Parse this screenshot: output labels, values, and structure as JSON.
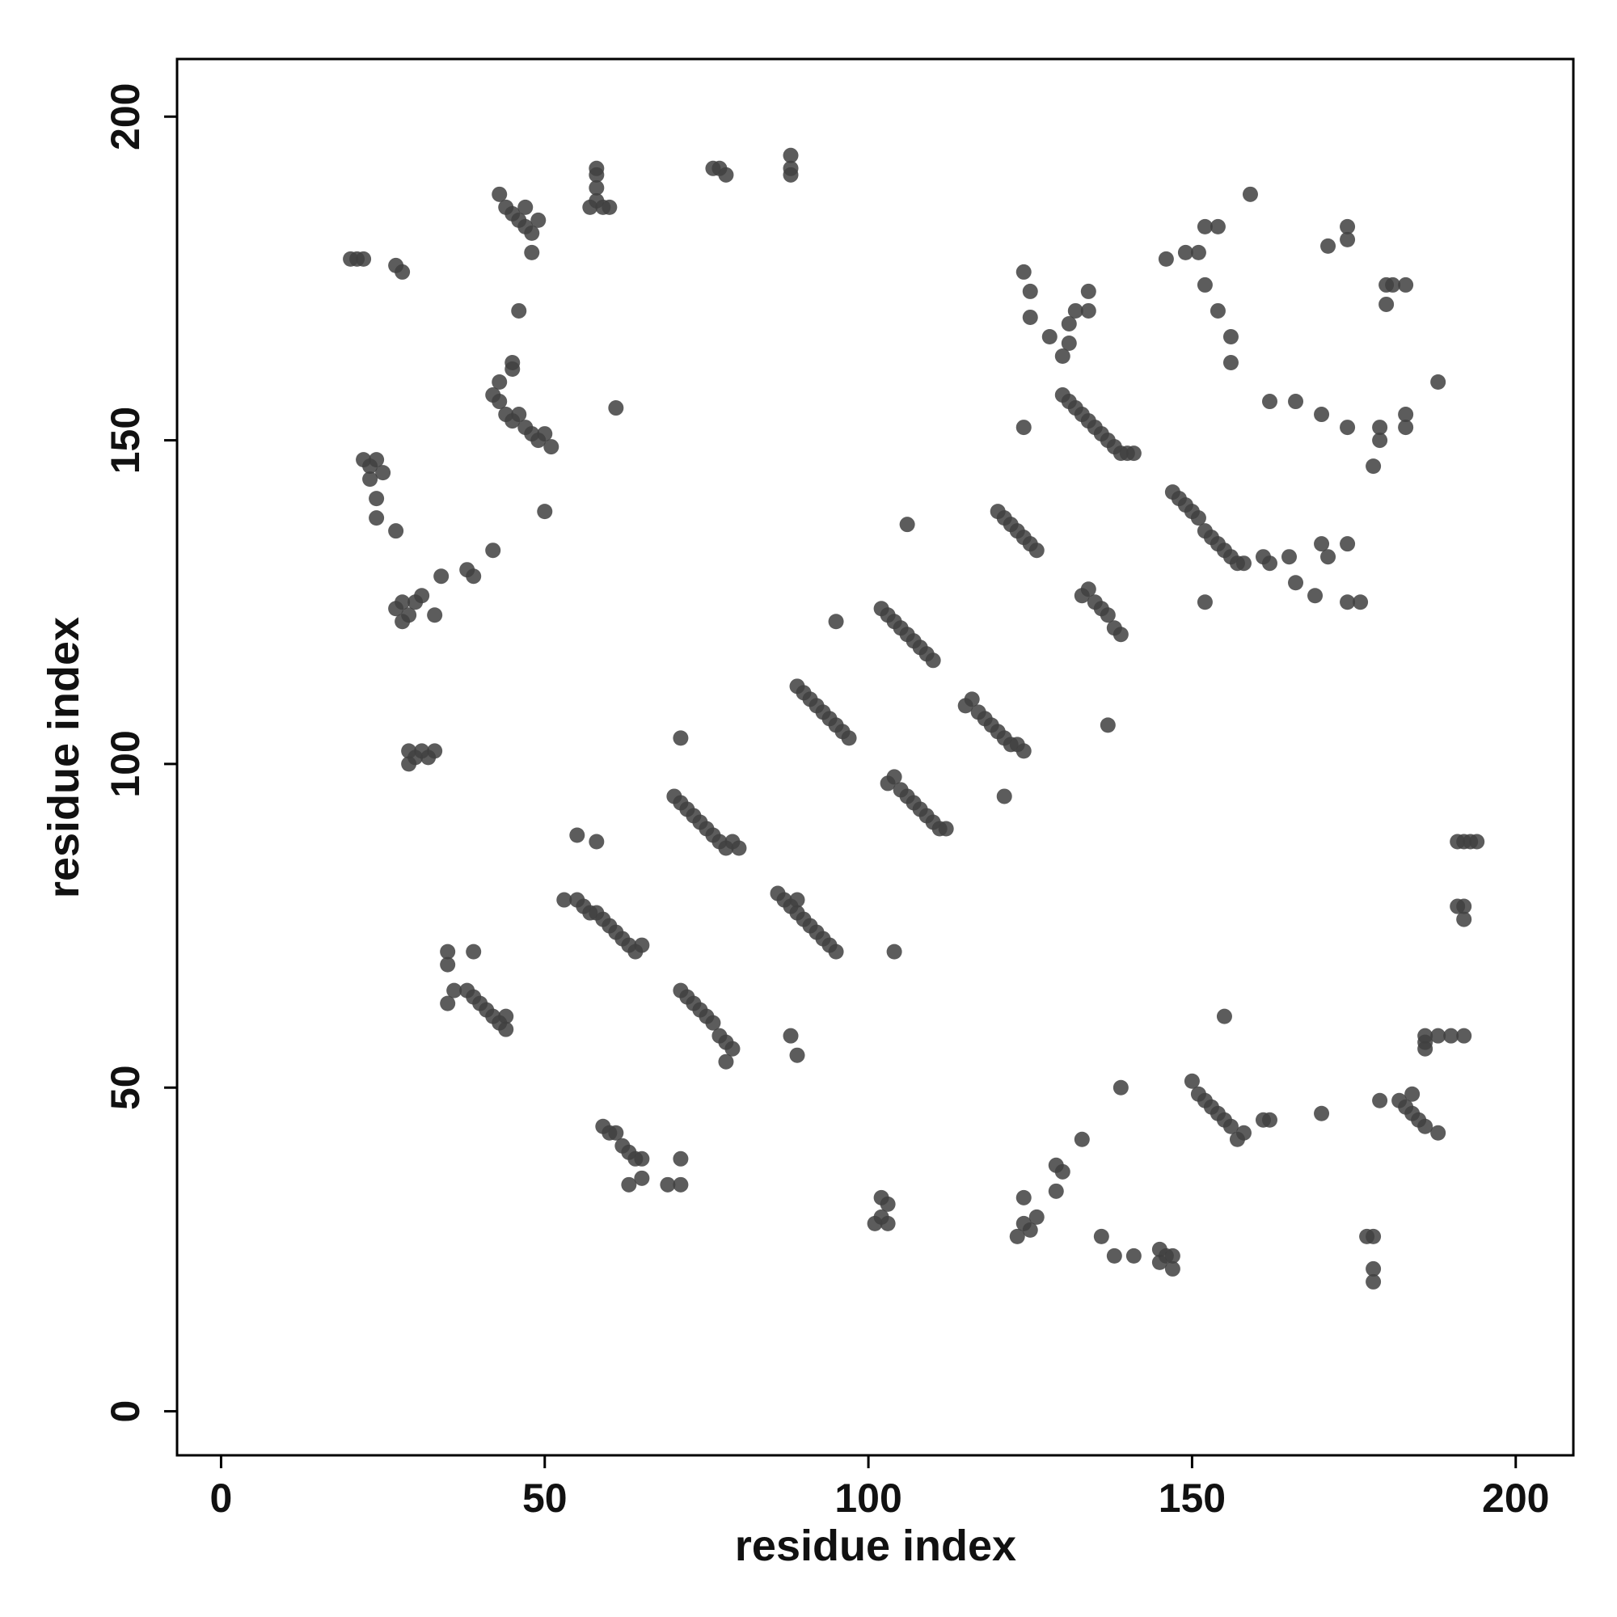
{
  "chart_data": {
    "type": "scatter",
    "xlabel": "residue index",
    "ylabel": "residue index",
    "color": "#404040",
    "xlim": [
      -6.8,
      208.9
    ],
    "ylim": [
      -6.8,
      208.9
    ],
    "xticks": [
      0,
      50,
      100,
      150,
      200
    ],
    "yticks": [
      0,
      50,
      100,
      150,
      200
    ],
    "x": [
      20,
      21,
      22,
      27,
      28,
      22,
      23,
      24,
      25,
      23,
      24,
      24,
      27,
      43,
      44,
      45,
      46,
      47,
      48,
      49,
      47,
      48,
      46,
      57,
      58,
      58,
      58,
      59,
      60,
      58,
      76,
      77,
      78,
      88,
      88,
      88,
      45,
      45,
      43,
      42,
      43,
      44,
      45,
      46,
      47,
      48,
      49,
      50,
      51,
      61,
      50,
      27,
      28,
      29,
      30,
      31,
      28,
      34,
      38,
      39,
      42,
      33,
      29,
      30,
      31,
      32,
      33,
      29,
      35,
      35,
      36,
      35,
      38,
      39,
      40,
      41,
      42,
      43,
      44,
      44,
      39,
      53,
      55,
      56,
      57,
      58,
      59,
      60,
      61,
      62,
      63,
      64,
      65,
      55,
      58,
      70,
      71,
      72,
      73,
      74,
      75,
      76,
      77,
      78,
      79,
      80,
      71,
      71,
      72,
      73,
      74,
      75,
      76,
      77,
      78,
      79,
      78,
      59,
      60,
      61,
      62,
      63,
      64,
      65,
      65,
      63,
      69,
      71,
      71,
      86,
      87,
      88,
      89,
      90,
      91,
      92,
      93,
      94,
      95,
      89,
      88,
      89,
      89,
      90,
      91,
      92,
      93,
      94,
      95,
      96,
      97,
      95,
      102,
      103,
      104,
      105,
      106,
      107,
      108,
      109,
      110,
      106,
      103,
      104,
      105,
      106,
      107,
      108,
      109,
      110,
      111,
      112,
      104,
      115,
      116,
      117,
      118,
      119,
      120,
      121,
      122,
      123,
      124,
      121,
      120,
      121,
      122,
      123,
      124,
      125,
      126,
      101,
      102,
      102,
      103,
      103,
      130,
      131,
      132,
      133,
      134,
      135,
      136,
      137,
      138,
      139,
      140,
      141,
      124,
      125,
      125,
      128,
      130,
      131,
      131,
      132,
      134,
      134,
      124,
      133,
      134,
      135,
      136,
      137,
      138,
      139,
      137,
      147,
      148,
      149,
      150,
      151,
      152,
      153,
      154,
      155,
      156,
      157,
      158,
      152,
      161,
      162,
      165,
      166,
      169,
      171,
      170,
      174,
      174,
      176,
      146,
      149,
      151,
      152,
      154,
      152,
      154,
      156,
      156,
      159,
      162,
      166,
      170,
      174,
      171,
      174,
      174,
      180,
      181,
      183,
      180,
      188,
      183,
      183,
      179,
      179,
      178,
      150,
      151,
      152,
      153,
      154,
      155,
      156,
      157,
      158,
      161,
      162,
      139,
      133,
      155,
      123,
      124,
      125,
      126,
      124,
      129,
      130,
      129,
      136,
      138,
      141,
      145,
      146,
      147,
      145,
      147,
      177,
      178,
      178,
      178,
      170,
      179,
      182,
      183,
      184,
      185,
      186,
      184,
      188,
      186,
      186,
      188,
      190,
      192,
      186,
      191,
      192,
      193,
      194,
      191,
      192,
      192
    ],
    "values": [
      178,
      178,
      178,
      177,
      176,
      147,
      146,
      147,
      145,
      144,
      141,
      138,
      136,
      188,
      186,
      185,
      184,
      183,
      182,
      184,
      186,
      179,
      170,
      186,
      187,
      189,
      191,
      186,
      186,
      192,
      192,
      192,
      191,
      194,
      192,
      191,
      162,
      161,
      159,
      157,
      156,
      154,
      153,
      154,
      152,
      151,
      150,
      151,
      149,
      155,
      139,
      124,
      125,
      123,
      125,
      126,
      122,
      129,
      130,
      129,
      133,
      123,
      102,
      101,
      102,
      101,
      102,
      100,
      71,
      69,
      65,
      63,
      65,
      64,
      63,
      62,
      61,
      60,
      61,
      59,
      71,
      79,
      79,
      78,
      77,
      77,
      76,
      75,
      74,
      73,
      72,
      71,
      72,
      89,
      88,
      95,
      94,
      93,
      92,
      91,
      90,
      89,
      88,
      87,
      88,
      87,
      104,
      65,
      64,
      63,
      62,
      61,
      60,
      58,
      57,
      56,
      54,
      44,
      43,
      43,
      41,
      40,
      39,
      39,
      36,
      35,
      35,
      35,
      39,
      80,
      79,
      78,
      77,
      76,
      75,
      74,
      73,
      72,
      71,
      79,
      58,
      55,
      112,
      111,
      110,
      109,
      108,
      107,
      106,
      105,
      104,
      122,
      124,
      123,
      122,
      121,
      120,
      119,
      118,
      117,
      116,
      137,
      97,
      98,
      96,
      95,
      94,
      93,
      92,
      91,
      90,
      90,
      71,
      109,
      110,
      108,
      107,
      106,
      105,
      104,
      103,
      103,
      102,
      95,
      139,
      138,
      137,
      136,
      135,
      134,
      133,
      29,
      30,
      33,
      32,
      29,
      157,
      156,
      155,
      154,
      153,
      152,
      151,
      150,
      149,
      148,
      148,
      148,
      176,
      173,
      169,
      166,
      163,
      165,
      168,
      170,
      173,
      170,
      152,
      126,
      127,
      125,
      124,
      123,
      121,
      120,
      106,
      142,
      141,
      140,
      139,
      138,
      136,
      135,
      134,
      133,
      132,
      131,
      131,
      125,
      132,
      131,
      132,
      128,
      126,
      132,
      134,
      134,
      125,
      125,
      178,
      179,
      179,
      183,
      183,
      174,
      170,
      166,
      162,
      188,
      156,
      156,
      154,
      152,
      180,
      181,
      183,
      174,
      174,
      174,
      171,
      159,
      154,
      152,
      152,
      150,
      146,
      51,
      49,
      48,
      47,
      46,
      45,
      44,
      42,
      43,
      45,
      45,
      50,
      42,
      61,
      27,
      29,
      28,
      30,
      33,
      38,
      37,
      34,
      27,
      24,
      24,
      23,
      24,
      22,
      25,
      24,
      27,
      27,
      22,
      20,
      46,
      48,
      48,
      47,
      46,
      45,
      44,
      49,
      43,
      58,
      57,
      58,
      58,
      58,
      56,
      88,
      88,
      88,
      88,
      78,
      78,
      76
    ]
  }
}
